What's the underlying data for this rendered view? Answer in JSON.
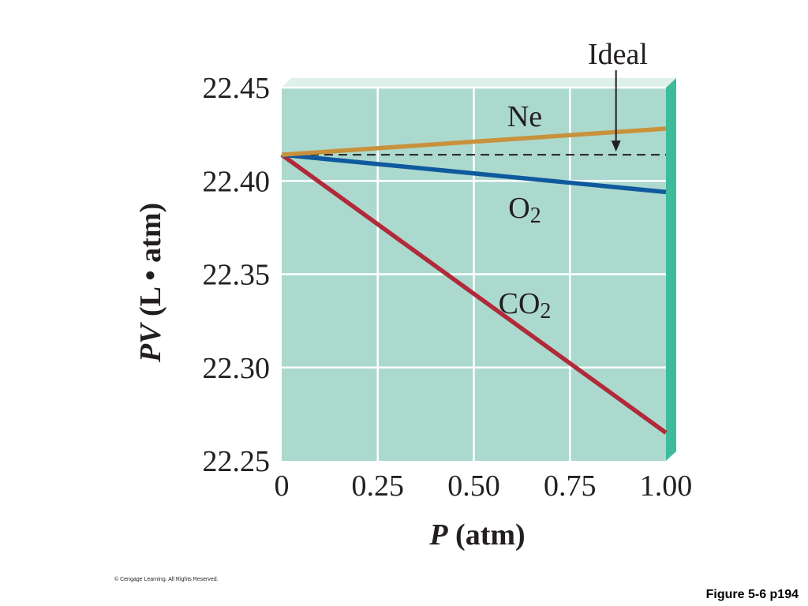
{
  "chart_data": {
    "type": "line",
    "xlabel": "P (atm)",
    "xlabel_parts": {
      "symbol": "P",
      "rest": " (atm)"
    },
    "ylabel": "PV (L • atm)",
    "ylabel_parts": {
      "symbol": "PV",
      "rest": " (L • atm)"
    },
    "xlim": [
      0,
      1.0
    ],
    "ylim": [
      22.25,
      22.45
    ],
    "x_ticks": [
      0,
      0.25,
      0.5,
      0.75,
      1.0
    ],
    "x_tick_labels": [
      "0",
      "0.25",
      "0.50",
      "0.75",
      "1.00"
    ],
    "y_ticks": [
      22.25,
      22.3,
      22.35,
      22.4,
      22.45
    ],
    "y_tick_labels": [
      "22.25",
      "22.30",
      "22.35",
      "22.40",
      "22.45"
    ],
    "grid": true,
    "series": [
      {
        "name": "Ne",
        "label_main": "Ne",
        "label_sub": "",
        "x": [
          0,
          1.0
        ],
        "y": [
          22.414,
          22.428
        ],
        "color": "#c8913c",
        "style": "solid"
      },
      {
        "name": "O2",
        "label_main": "O",
        "label_sub": "2",
        "x": [
          0,
          1.0
        ],
        "y": [
          22.414,
          22.394
        ],
        "color": "#0f5a9e",
        "style": "solid"
      },
      {
        "name": "CO2",
        "label_main": "CO",
        "label_sub": "2",
        "x": [
          0,
          1.0
        ],
        "y": [
          22.414,
          22.265
        ],
        "color": "#b02a3a",
        "style": "solid"
      },
      {
        "name": "Ideal",
        "label_main": "Ideal",
        "label_sub": "",
        "x": [
          0,
          1.0
        ],
        "y": [
          22.414,
          22.414
        ],
        "color": "#231f20",
        "style": "dashed"
      }
    ],
    "annotation": {
      "text": "Ideal",
      "points_to": {
        "x": 0.87,
        "y": 22.414
      }
    },
    "colors": {
      "plot_background": "#acd9cd",
      "grid": "#ffffff",
      "frame_side": "#3dbb9b",
      "frame_top": "#def0ea"
    }
  },
  "footer": {
    "copyright": "© Cengage Learning. All Rights Reserved.",
    "figure_label": "Figure 5-6 p194"
  }
}
